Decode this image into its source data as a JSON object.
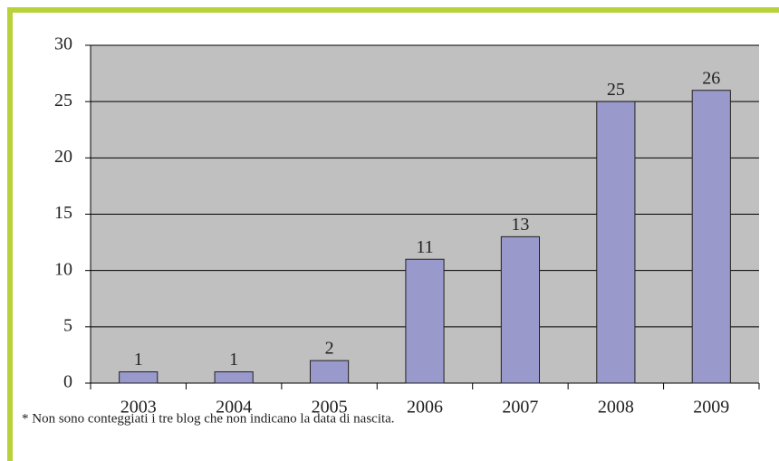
{
  "chart_data": {
    "type": "bar",
    "categories": [
      "2003",
      "2004",
      "2005",
      "2006",
      "2007",
      "2008",
      "2009"
    ],
    "values": [
      1,
      1,
      2,
      11,
      13,
      25,
      26
    ],
    "color": "#9999cc",
    "ylim": [
      0,
      30
    ],
    "yticks": [
      0,
      5,
      10,
      15,
      20,
      25,
      30
    ],
    "grid": true,
    "footnote": "* Non sono conteggiati i tre blog che non indicano la data di nascita."
  }
}
